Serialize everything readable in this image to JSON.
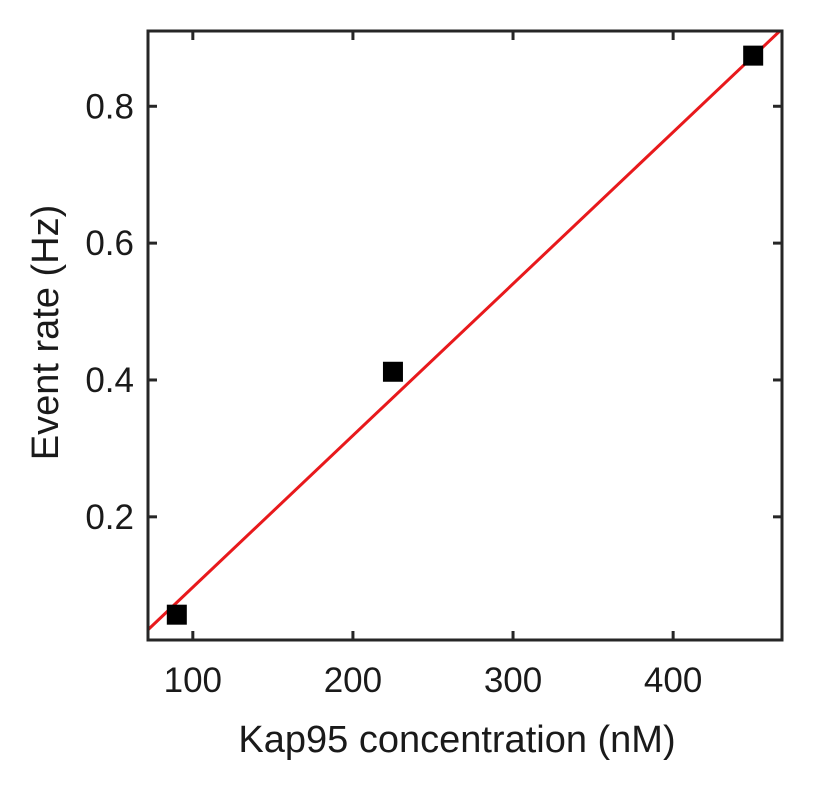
{
  "chart_data": {
    "type": "scatter",
    "title": "",
    "xlabel": "Kap95 concentration (nM)",
    "ylabel": "Event rate (Hz)",
    "xlim": [
      72,
      468
    ],
    "ylim": [
      0.02,
      0.91
    ],
    "x_ticks": [
      100,
      200,
      300,
      400
    ],
    "y_ticks": [
      0.2,
      0.4,
      0.6,
      0.8
    ],
    "x_tick_labels": [
      "100",
      "200",
      "300",
      "400"
    ],
    "y_tick_labels": [
      "0.2",
      "0.4",
      "0.6",
      "0.8"
    ],
    "grid": false,
    "series": [
      {
        "marker": "square",
        "color": "#000000",
        "points": [
          {
            "x": 90,
            "y": 0.057
          },
          {
            "x": 225,
            "y": 0.412
          },
          {
            "x": 450,
            "y": 0.874
          }
        ]
      }
    ],
    "fit_line": {
      "color": "#e8191c",
      "points": [
        {
          "x": 72,
          "y": 0.035
        },
        {
          "x": 468,
          "y": 0.913
        }
      ]
    }
  }
}
